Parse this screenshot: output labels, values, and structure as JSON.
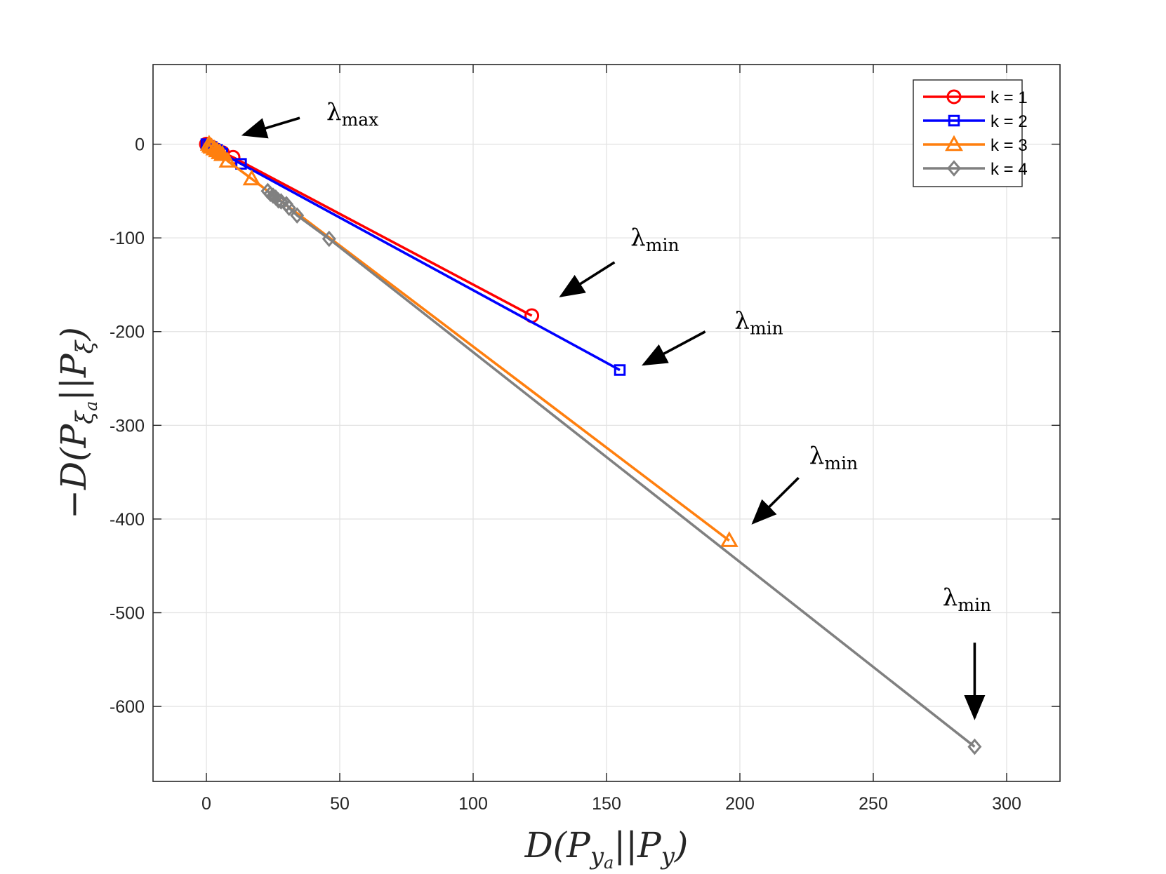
{
  "chart_data": {
    "type": "line",
    "title": "",
    "xlabel": "D(P_{y_a}||P_y)",
    "ylabel": "-D(P_{ξ_a}||P_ξ)",
    "xlabel_parts": {
      "main": "D(P",
      "sub": "y",
      "subsub": "a",
      "mid": "||P",
      "sub2": "y",
      "close": ")"
    },
    "ylabel_parts": {
      "main": "−D(P",
      "sub": "ξ",
      "subsub": "a",
      "mid": "||P",
      "sub2": "ξ",
      "close": ")"
    },
    "xlim": [
      -20,
      320
    ],
    "ylim": [
      -680,
      85
    ],
    "xticks": [
      0,
      50,
      100,
      150,
      200,
      250,
      300
    ],
    "yticks": [
      0,
      -100,
      -200,
      -300,
      -400,
      -500,
      -600
    ],
    "grid": true,
    "legend_position": "top-right",
    "series": [
      {
        "name": "k = 1",
        "color": "#ff0000",
        "marker": "circle",
        "x": [
          0,
          0.5,
          1,
          2,
          3,
          4,
          6,
          10,
          122
        ],
        "y": [
          0,
          -1,
          -2,
          -3,
          -5,
          -7,
          -9,
          -14,
          -183
        ]
      },
      {
        "name": "k = 2",
        "color": "#0000ff",
        "marker": "square",
        "x": [
          0,
          1,
          2,
          3,
          4,
          5,
          6,
          13,
          155
        ],
        "y": [
          0,
          -2,
          -3,
          -5,
          -6,
          -8,
          -10,
          -21,
          -241
        ]
      },
      {
        "name": "k = 3",
        "color": "#ff7f0e",
        "marker": "triangle",
        "x": [
          1,
          1.5,
          2,
          3,
          4,
          5,
          6,
          8,
          17,
          196
        ],
        "y": [
          0,
          -2,
          -3,
          -5,
          -7,
          -9,
          -11,
          -18,
          -37,
          -423
        ]
      },
      {
        "name": "k = 4",
        "color": "#808080",
        "marker": "diamond",
        "x": [
          23,
          24,
          25,
          26,
          27,
          28,
          30,
          31,
          34,
          46,
          288
        ],
        "y": [
          -50,
          -53,
          -55,
          -57,
          -60,
          -61,
          -64,
          -68,
          -76,
          -101,
          -643
        ]
      }
    ],
    "annotations": [
      {
        "label": "λ",
        "sub": "max",
        "text_xy": [
          45,
          26
        ],
        "arrow_from": [
          35,
          28
        ],
        "arrow_to": [
          14,
          10
        ]
      },
      {
        "label": "λ",
        "sub": "min",
        "text_xy": [
          159,
          -108
        ],
        "arrow_from": [
          153,
          -126
        ],
        "arrow_to": [
          133,
          -162
        ]
      },
      {
        "label": "λ",
        "sub": "min",
        "text_xy": [
          198,
          -197
        ],
        "arrow_from": [
          187,
          -200
        ],
        "arrow_to": [
          164,
          -235
        ]
      },
      {
        "label": "λ",
        "sub": "min",
        "text_xy": [
          226,
          -341
        ],
        "arrow_from": [
          222,
          -356
        ],
        "arrow_to": [
          205,
          -404
        ]
      },
      {
        "label": "λ",
        "sub": "min",
        "text_xy": [
          276,
          -492
        ],
        "arrow_from": [
          288,
          -532
        ],
        "arrow_to": [
          288,
          -612
        ]
      }
    ]
  }
}
